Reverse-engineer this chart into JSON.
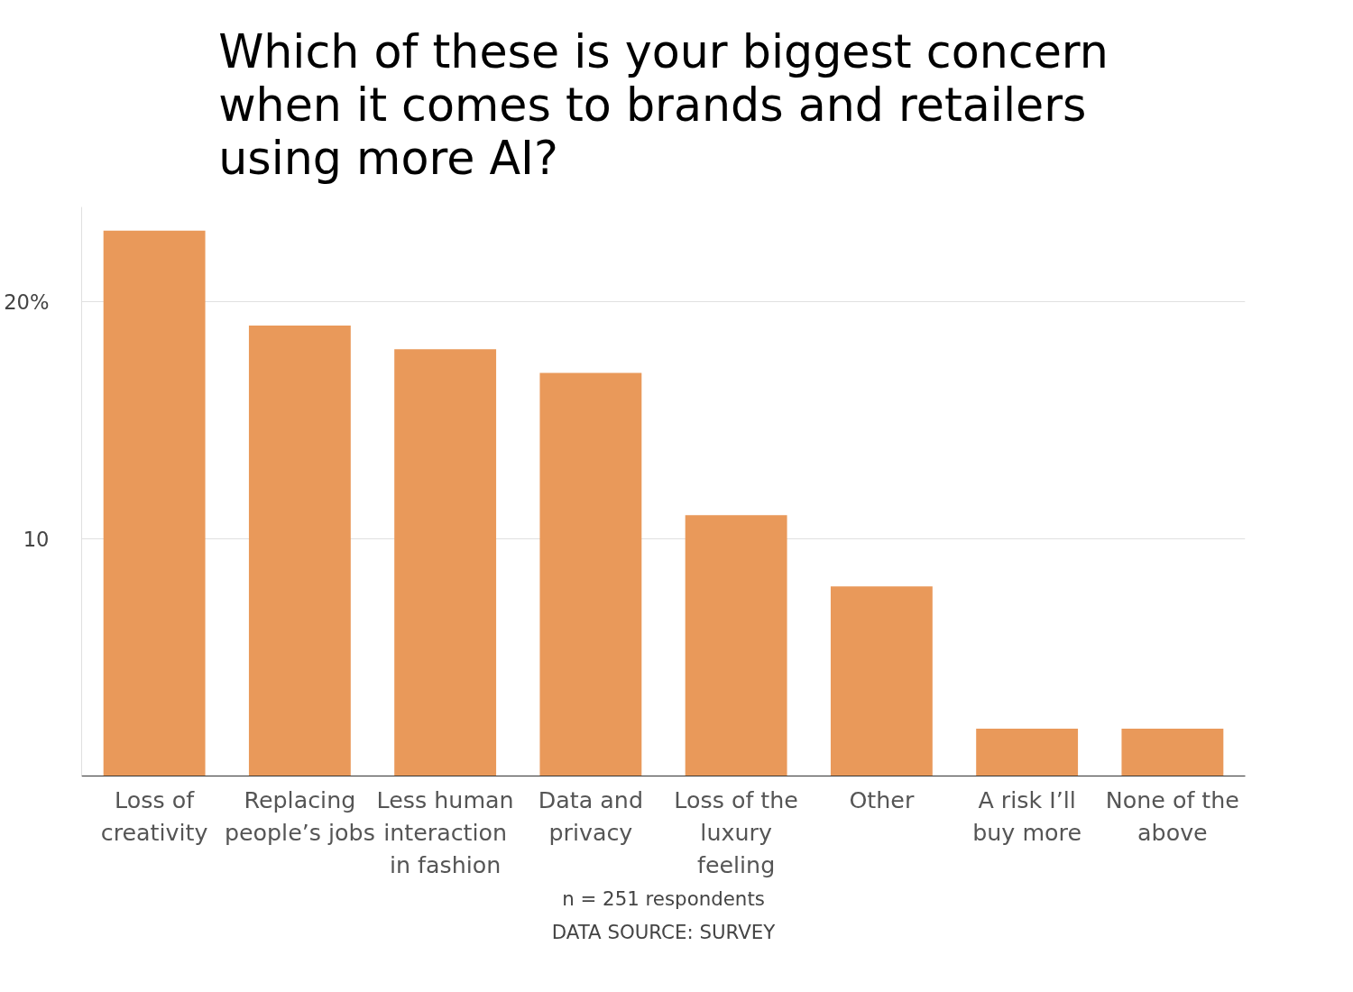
{
  "chart_data": {
    "type": "bar",
    "title": "Which of these is your biggest concern when it comes to brands and retailers using more AI?",
    "categories": [
      "Loss of creativity",
      "Replacing people’s jobs",
      "Less human interaction in fashion",
      "Data and privacy",
      "Loss of the luxury feeling",
      "Other",
      "A risk I’ll buy more",
      "None of the above"
    ],
    "values": [
      23,
      19,
      18,
      17,
      11,
      8,
      2,
      2
    ],
    "color": "#e9995a",
    "ylim": [
      0,
      24
    ],
    "yticks": [
      10,
      {
        "value": 20,
        "label": "20%"
      }
    ],
    "grid": "y",
    "annotations": [
      "n = 251 respondents",
      "DATA SOURCE: SURVEY"
    ]
  }
}
